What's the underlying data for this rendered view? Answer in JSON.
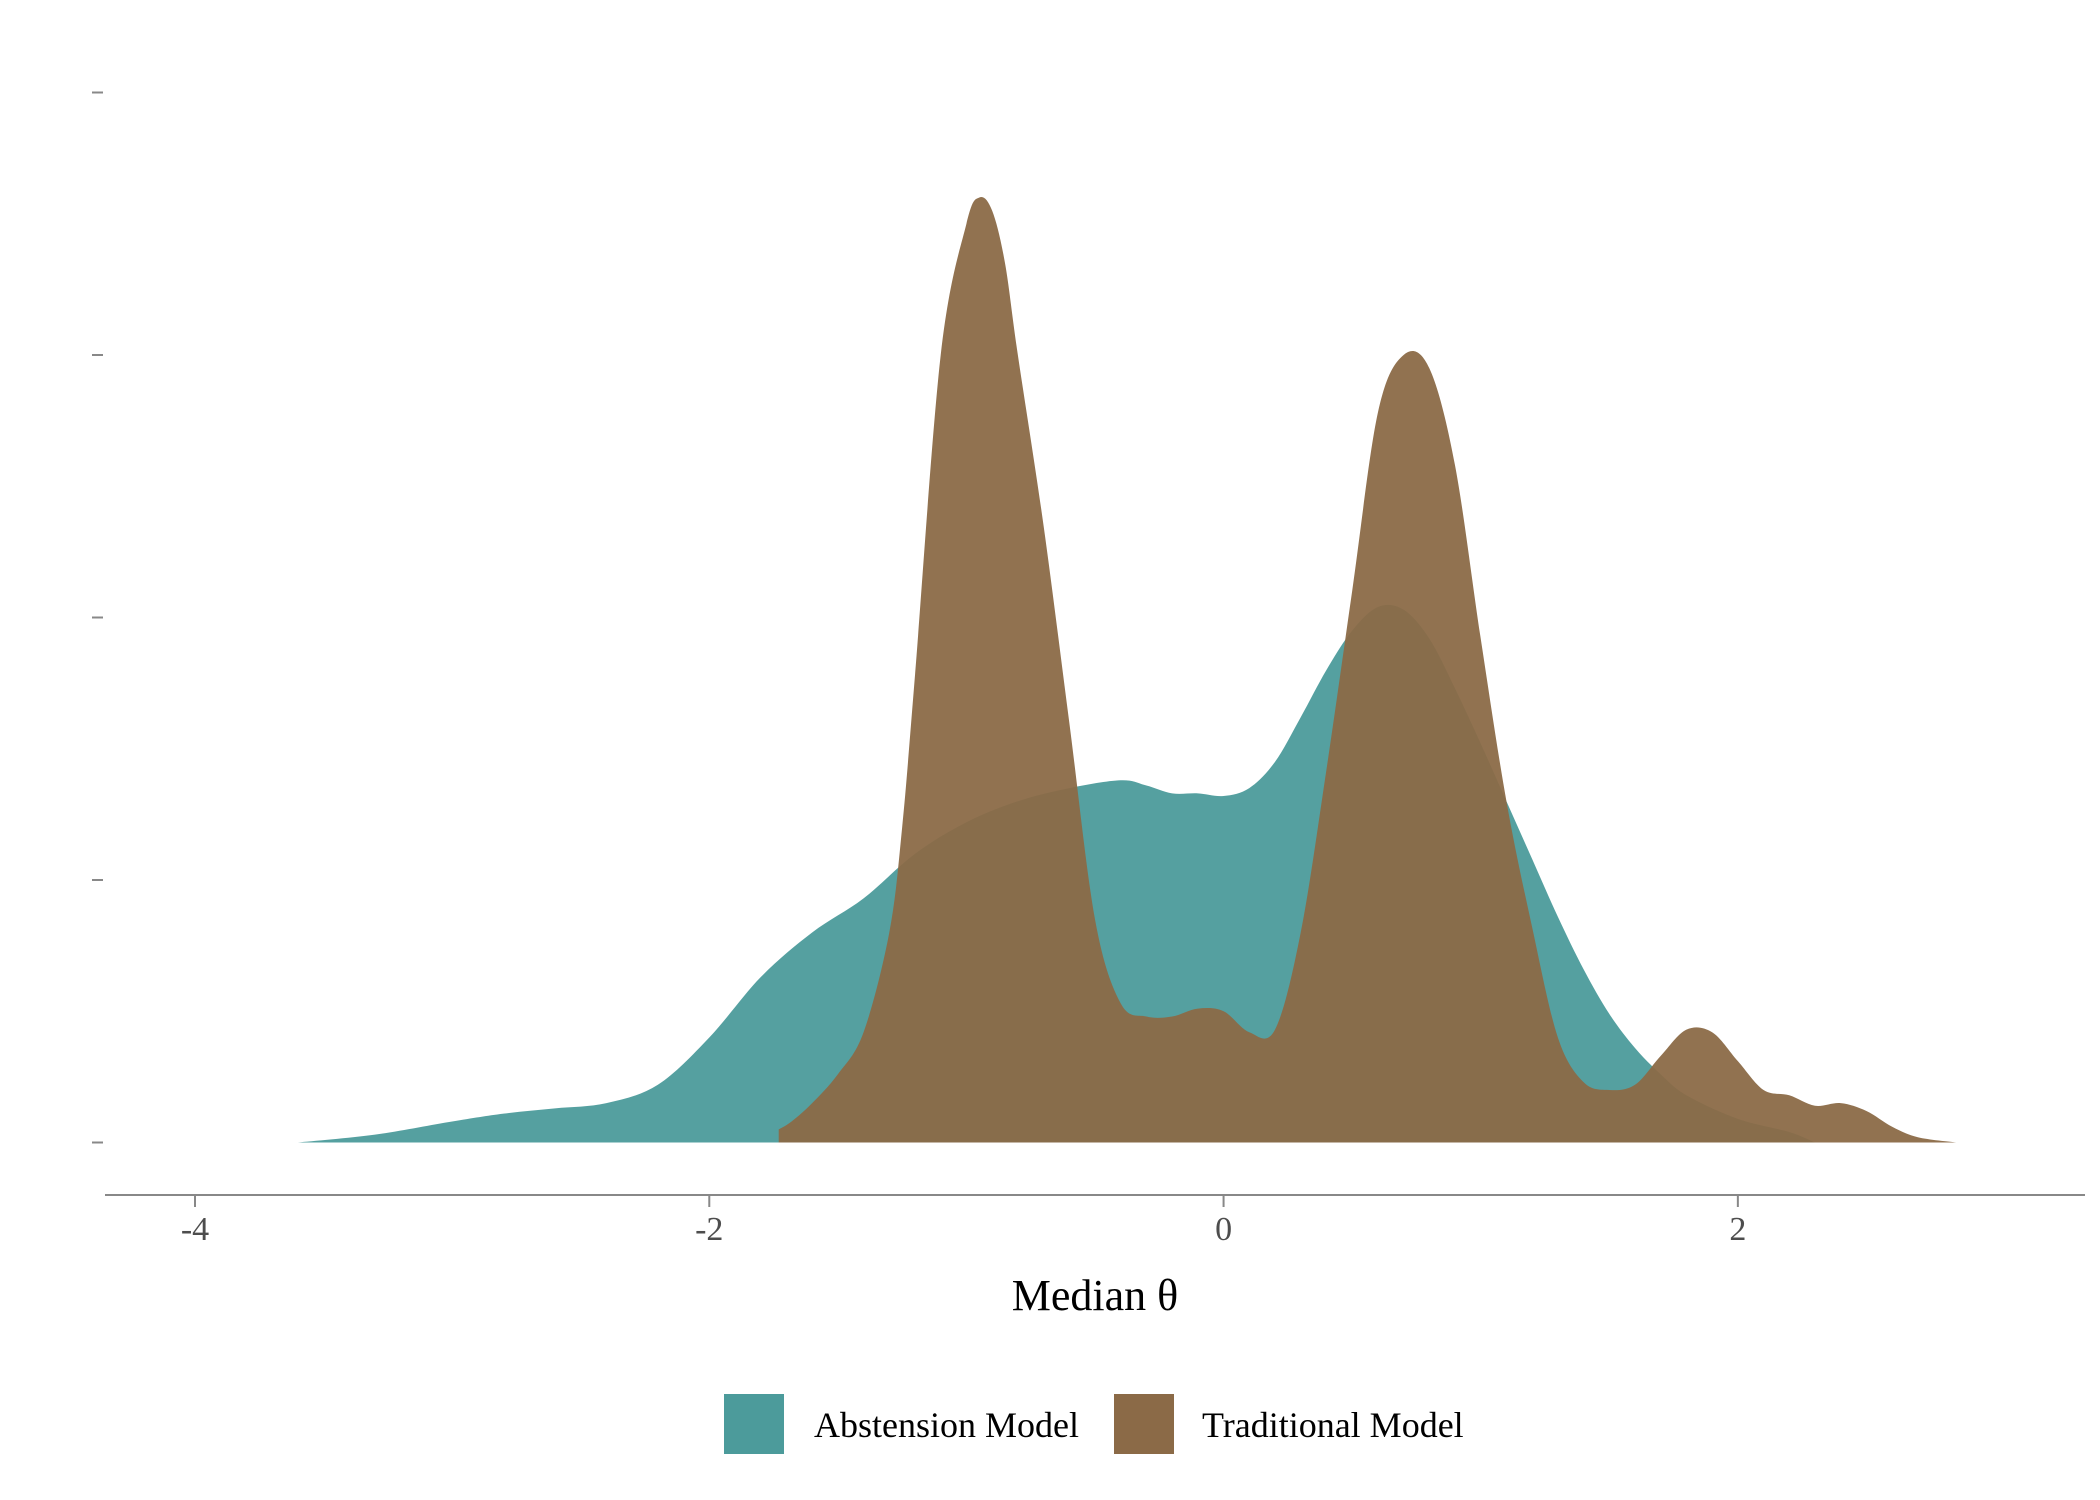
{
  "chart_data": {
    "type": "area",
    "subtype": "density",
    "title": "",
    "xlabel": "Median  θ",
    "ylabel": "",
    "xlim": [
      -4.35,
      3.35
    ],
    "ylim": [
      -0.2,
      4.2
    ],
    "x_ticks": [
      -4,
      -2,
      0,
      2
    ],
    "x_tick_labels": [
      "-4",
      "-2",
      "0",
      "2"
    ],
    "y_ticks": [
      0,
      1,
      2,
      3,
      4
    ],
    "y_tick_labels": [
      "",
      "",
      "",
      "",
      ""
    ],
    "grid": false,
    "legend": {
      "position": "bottom",
      "entries": [
        "Abstension Model",
        "Traditional Model"
      ]
    },
    "series": [
      {
        "name": "Abstension Model",
        "color": "#4C9B9B",
        "x": [
          -3.6,
          -3.3,
          -3.0,
          -2.8,
          -2.6,
          -2.4,
          -2.2,
          -2.0,
          -1.8,
          -1.6,
          -1.4,
          -1.2,
          -1.0,
          -0.8,
          -0.6,
          -0.4,
          -0.3,
          -0.2,
          -0.1,
          0.0,
          0.1,
          0.2,
          0.3,
          0.4,
          0.5,
          0.6,
          0.7,
          0.8,
          0.9,
          1.0,
          1.1,
          1.2,
          1.3,
          1.4,
          1.5,
          1.6,
          1.7,
          1.8,
          2.0,
          2.2,
          2.3
        ],
        "y": [
          0.0,
          0.03,
          0.08,
          0.11,
          0.13,
          0.15,
          0.22,
          0.4,
          0.63,
          0.8,
          0.93,
          1.1,
          1.22,
          1.3,
          1.35,
          1.38,
          1.36,
          1.33,
          1.33,
          1.32,
          1.35,
          1.45,
          1.62,
          1.8,
          1.95,
          2.04,
          2.03,
          1.92,
          1.73,
          1.52,
          1.3,
          1.08,
          0.86,
          0.66,
          0.49,
          0.36,
          0.26,
          0.18,
          0.09,
          0.04,
          0.0
        ]
      },
      {
        "name": "Traditional Model",
        "color": "#8B6A47",
        "x": [
          -1.73,
          -1.68,
          -1.6,
          -1.5,
          -1.4,
          -1.3,
          -1.25,
          -1.2,
          -1.1,
          -1.0,
          -0.95,
          -0.9,
          -0.85,
          -0.8,
          -0.7,
          -0.6,
          -0.5,
          -0.4,
          -0.3,
          -0.2,
          -0.1,
          0.0,
          0.1,
          0.2,
          0.3,
          0.4,
          0.5,
          0.6,
          0.7,
          0.8,
          0.9,
          1.0,
          1.1,
          1.2,
          1.3,
          1.4,
          1.5,
          1.6,
          1.7,
          1.8,
          1.9,
          2.0,
          2.1,
          2.2,
          2.3,
          2.4,
          2.5,
          2.6,
          2.7,
          2.85
        ],
        "y": [
          0.05,
          0.08,
          0.15,
          0.26,
          0.42,
          0.8,
          1.2,
          1.78,
          3.0,
          3.5,
          3.6,
          3.55,
          3.35,
          3.0,
          2.35,
          1.6,
          0.85,
          0.53,
          0.48,
          0.48,
          0.51,
          0.5,
          0.42,
          0.43,
          0.8,
          1.42,
          2.1,
          2.78,
          3.0,
          2.95,
          2.58,
          1.92,
          1.3,
          0.82,
          0.4,
          0.23,
          0.2,
          0.22,
          0.33,
          0.43,
          0.42,
          0.31,
          0.2,
          0.18,
          0.14,
          0.15,
          0.12,
          0.06,
          0.02,
          0.0
        ]
      }
    ]
  }
}
